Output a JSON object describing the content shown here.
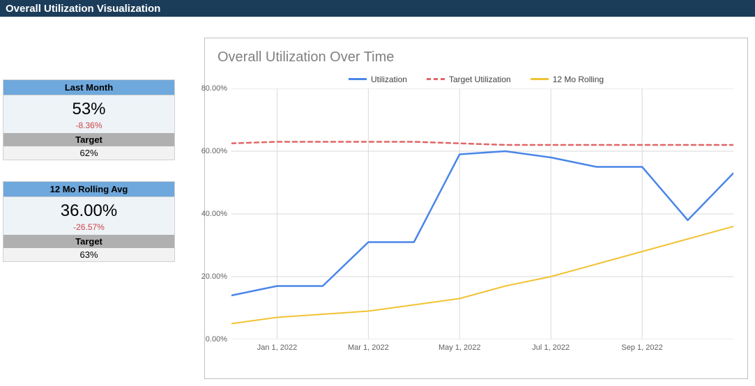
{
  "header": {
    "title": "Overall Utilization Visualization"
  },
  "sidebar": {
    "cards": [
      {
        "title": "Last Month",
        "value": "53%",
        "delta": "-8.36%",
        "target_label": "Target",
        "target_value": "62%"
      },
      {
        "title": "12 Mo Rolling Avg",
        "value": "36.00%",
        "delta": "-26.57%",
        "target_label": "Target",
        "target_value": "63%"
      }
    ]
  },
  "chart": {
    "type": "line",
    "title": "Overall Utilization Over Time",
    "title_color": "#808080",
    "title_fontsize": 20,
    "background_color": "#ffffff",
    "grid_color": "#d9d9d9",
    "axis_label_color": "#606060",
    "axis_fontsize": 11,
    "ylim": [
      0,
      80
    ],
    "ytick_step": 20,
    "y_format_suffix": ".00%",
    "x_index_range": [
      0,
      11
    ],
    "x_ticks": [
      {
        "at": 1,
        "label": "Jan 1, 2022"
      },
      {
        "at": 3,
        "label": "Mar 1, 2022"
      },
      {
        "at": 5,
        "label": "May 1, 2022"
      },
      {
        "at": 7,
        "label": "Jul 1, 2022"
      },
      {
        "at": 9,
        "label": "Sep 1, 2022"
      }
    ],
    "series": [
      {
        "name": "Utilization",
        "color": "#4a86e8",
        "line_width": 2.5,
        "dash": "none",
        "values": [
          14,
          17,
          17,
          31,
          31,
          59,
          60,
          58,
          55,
          55,
          38,
          53
        ]
      },
      {
        "name": "Target Utilization",
        "color": "#e06666",
        "line_width": 2.5,
        "dash": "6,5",
        "values": [
          62.5,
          63,
          63,
          63,
          63,
          62.5,
          62,
          62,
          62,
          62,
          62,
          62
        ]
      },
      {
        "name": "12 Mo Rolling",
        "color": "#f1c232",
        "line_width": 2,
        "dash": "none",
        "values": [
          5,
          7,
          8,
          9,
          11,
          13,
          17,
          20,
          24,
          28,
          32,
          36
        ]
      }
    ],
    "legend": {
      "items": [
        {
          "label": "Utilization",
          "color": "#4a86e8",
          "dash": "none"
        },
        {
          "label": "Target Utilization",
          "color": "#e06666",
          "dash": "6,5"
        },
        {
          "label": "12 Mo Rolling",
          "color": "#f1c232",
          "dash": "none"
        }
      ]
    }
  }
}
